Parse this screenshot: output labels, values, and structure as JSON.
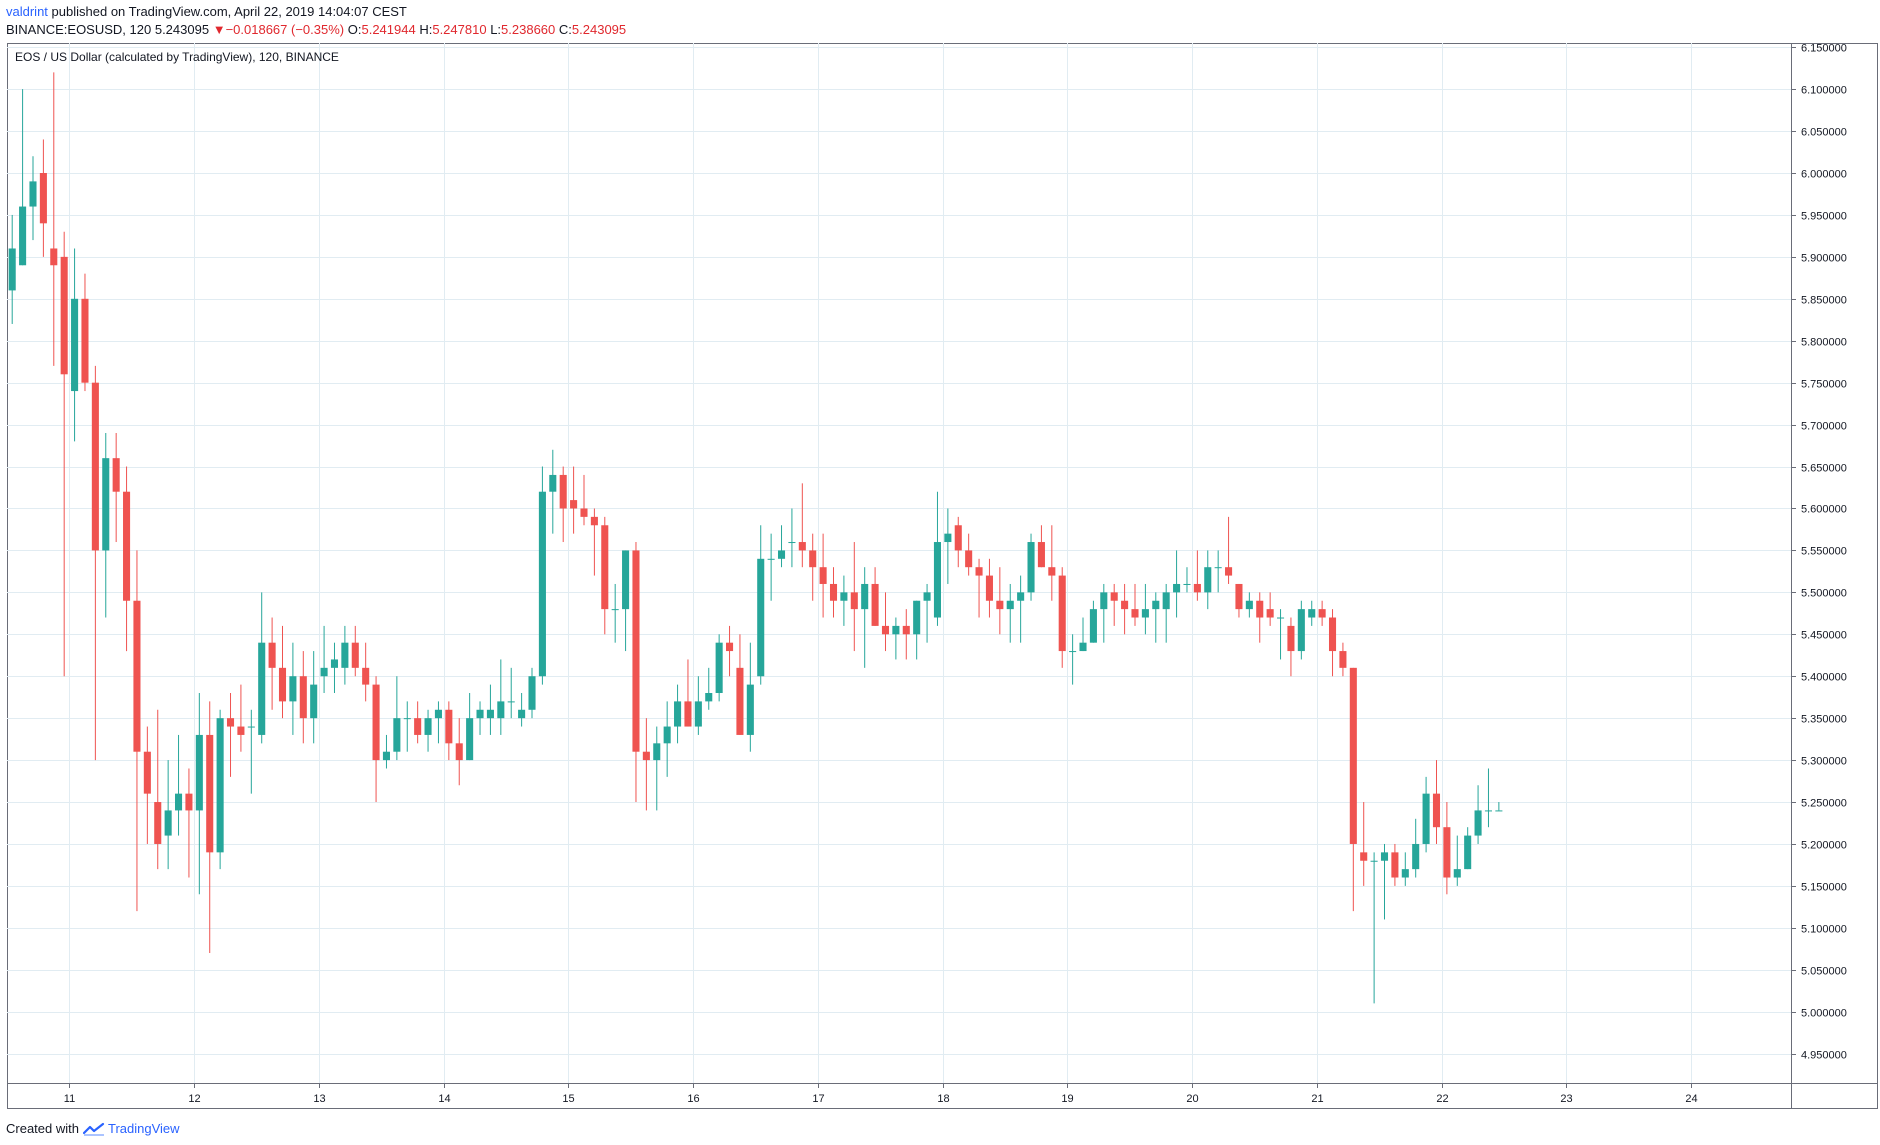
{
  "header": {
    "author": "valdrint",
    "published": "published on TradingView.com, April 22, 2019 14:04:07 CEST",
    "symbol_interval": "BINANCE:EOSUSD, 120",
    "last": "5.243095",
    "change_arrow": "▼",
    "change": "−0.018667 (−0.35%)",
    "o_label": "O:",
    "o": "5.241944",
    "h_label": "H:",
    "h": "5.247810",
    "l_label": "L:",
    "l": "5.238660",
    "c_label": "C:",
    "c": "5.243095"
  },
  "footer": {
    "created_with": "Created with",
    "brand": "TradingView",
    "logo_icon": "tradingview-logo-icon"
  },
  "colors": {
    "up": "#26a69a",
    "down": "#ef5350",
    "grid": "#e1ecf2",
    "axis": "#6a6d78",
    "text": "#131722"
  },
  "chart_data": {
    "type": "candlestick",
    "title": "EOS / US Dollar (calculated by TradingView), 120, BINANCE",
    "y_ticks": [
      "4.950000",
      "5.000000",
      "5.050000",
      "5.100000",
      "5.150000",
      "5.200000",
      "5.250000",
      "5.300000",
      "5.350000",
      "5.400000",
      "5.450000",
      "5.500000",
      "5.550000",
      "5.600000",
      "5.650000",
      "5.700000",
      "5.750000",
      "5.800000",
      "5.850000",
      "5.900000",
      "5.950000",
      "6.000000",
      "6.050000",
      "6.100000",
      "6.150000"
    ],
    "ylim": [
      4.915,
      6.155
    ],
    "x_ticks": [
      "11",
      "12",
      "13",
      "14",
      "15",
      "16",
      "17",
      "18",
      "19",
      "20",
      "21",
      "22",
      "23",
      "24"
    ],
    "x_tick_days": [
      11,
      12,
      13,
      14,
      15,
      16,
      17,
      18,
      19,
      20,
      21,
      22,
      23,
      24
    ],
    "xlim": [
      10.5,
      24.8
    ],
    "grid": true,
    "candle_times": "April 10, 2019 at 13:00, then one candle every 2 hours",
    "ohlc": [
      [
        5.86,
        5.95,
        5.82,
        5.91
      ],
      [
        5.89,
        6.1,
        5.89,
        5.96
      ],
      [
        5.96,
        6.02,
        5.92,
        5.99
      ],
      [
        6.0,
        6.04,
        5.9,
        5.94
      ],
      [
        5.91,
        6.12,
        5.77,
        5.89
      ],
      [
        5.9,
        5.93,
        5.4,
        5.76
      ],
      [
        5.74,
        5.91,
        5.68,
        5.85
      ],
      [
        5.85,
        5.88,
        5.74,
        5.75
      ],
      [
        5.75,
        5.77,
        5.3,
        5.55
      ],
      [
        5.55,
        5.69,
        5.47,
        5.66
      ],
      [
        5.66,
        5.69,
        5.56,
        5.62
      ],
      [
        5.62,
        5.65,
        5.43,
        5.49
      ],
      [
        5.49,
        5.55,
        5.12,
        5.31
      ],
      [
        5.31,
        5.34,
        5.2,
        5.26
      ],
      [
        5.25,
        5.36,
        5.17,
        5.2
      ],
      [
        5.21,
        5.3,
        5.17,
        5.24
      ],
      [
        5.24,
        5.33,
        5.21,
        5.26
      ],
      [
        5.26,
        5.29,
        5.16,
        5.24
      ],
      [
        5.24,
        5.38,
        5.14,
        5.33
      ],
      [
        5.33,
        5.37,
        5.07,
        5.19
      ],
      [
        5.19,
        5.36,
        5.17,
        5.35
      ],
      [
        5.35,
        5.38,
        5.28,
        5.34
      ],
      [
        5.34,
        5.39,
        5.31,
        5.33
      ],
      [
        5.34,
        5.36,
        5.26,
        5.34
      ],
      [
        5.33,
        5.5,
        5.32,
        5.44
      ],
      [
        5.44,
        5.47,
        5.36,
        5.41
      ],
      [
        5.41,
        5.46,
        5.35,
        5.37
      ],
      [
        5.37,
        5.44,
        5.33,
        5.4
      ],
      [
        5.4,
        5.43,
        5.32,
        5.35
      ],
      [
        5.35,
        5.43,
        5.32,
        5.39
      ],
      [
        5.4,
        5.46,
        5.38,
        5.41
      ],
      [
        5.41,
        5.44,
        5.38,
        5.42
      ],
      [
        5.41,
        5.46,
        5.39,
        5.44
      ],
      [
        5.44,
        5.46,
        5.4,
        5.41
      ],
      [
        5.41,
        5.44,
        5.37,
        5.39
      ],
      [
        5.39,
        5.4,
        5.25,
        5.3
      ],
      [
        5.3,
        5.33,
        5.29,
        5.31
      ],
      [
        5.31,
        5.4,
        5.3,
        5.35
      ],
      [
        5.35,
        5.37,
        5.31,
        5.35
      ],
      [
        5.35,
        5.37,
        5.32,
        5.33
      ],
      [
        5.33,
        5.36,
        5.31,
        5.35
      ],
      [
        5.35,
        5.37,
        5.32,
        5.36
      ],
      [
        5.36,
        5.37,
        5.3,
        5.32
      ],
      [
        5.32,
        5.35,
        5.27,
        5.3
      ],
      [
        5.3,
        5.38,
        5.3,
        5.35
      ],
      [
        5.35,
        5.37,
        5.33,
        5.36
      ],
      [
        5.35,
        5.39,
        5.33,
        5.36
      ],
      [
        5.35,
        5.42,
        5.33,
        5.37
      ],
      [
        5.37,
        5.41,
        5.35,
        5.37
      ],
      [
        5.35,
        5.38,
        5.34,
        5.36
      ],
      [
        5.36,
        5.41,
        5.35,
        5.4
      ],
      [
        5.4,
        5.65,
        5.39,
        5.62
      ],
      [
        5.62,
        5.67,
        5.57,
        5.64
      ],
      [
        5.64,
        5.65,
        5.56,
        5.6
      ],
      [
        5.61,
        5.65,
        5.57,
        5.6
      ],
      [
        5.6,
        5.64,
        5.58,
        5.59
      ],
      [
        5.59,
        5.6,
        5.52,
        5.58
      ],
      [
        5.58,
        5.59,
        5.45,
        5.48
      ],
      [
        5.48,
        5.51,
        5.44,
        5.48
      ],
      [
        5.48,
        5.55,
        5.43,
        5.55
      ],
      [
        5.55,
        5.56,
        5.25,
        5.31
      ],
      [
        5.31,
        5.35,
        5.24,
        5.3
      ],
      [
        5.3,
        5.34,
        5.24,
        5.32
      ],
      [
        5.32,
        5.37,
        5.28,
        5.34
      ],
      [
        5.34,
        5.39,
        5.32,
        5.37
      ],
      [
        5.37,
        5.42,
        5.34,
        5.34
      ],
      [
        5.34,
        5.4,
        5.33,
        5.37
      ],
      [
        5.37,
        5.41,
        5.36,
        5.38
      ],
      [
        5.38,
        5.45,
        5.37,
        5.44
      ],
      [
        5.44,
        5.46,
        5.4,
        5.43
      ],
      [
        5.41,
        5.45,
        5.33,
        5.33
      ],
      [
        5.33,
        5.44,
        5.31,
        5.39
      ],
      [
        5.4,
        5.58,
        5.39,
        5.54
      ],
      [
        5.54,
        5.57,
        5.49,
        5.54
      ],
      [
        5.54,
        5.58,
        5.53,
        5.55
      ],
      [
        5.56,
        5.6,
        5.53,
        5.56
      ],
      [
        5.56,
        5.63,
        5.53,
        5.55
      ],
      [
        5.55,
        5.57,
        5.49,
        5.53
      ],
      [
        5.53,
        5.57,
        5.47,
        5.51
      ],
      [
        5.51,
        5.53,
        5.47,
        5.49
      ],
      [
        5.49,
        5.52,
        5.46,
        5.5
      ],
      [
        5.5,
        5.56,
        5.43,
        5.48
      ],
      [
        5.48,
        5.53,
        5.41,
        5.51
      ],
      [
        5.51,
        5.53,
        5.46,
        5.46
      ],
      [
        5.46,
        5.5,
        5.43,
        5.45
      ],
      [
        5.45,
        5.47,
        5.42,
        5.46
      ],
      [
        5.46,
        5.48,
        5.42,
        5.45
      ],
      [
        5.45,
        5.49,
        5.42,
        5.49
      ],
      [
        5.49,
        5.51,
        5.44,
        5.5
      ],
      [
        5.47,
        5.62,
        5.46,
        5.56
      ],
      [
        5.56,
        5.6,
        5.51,
        5.57
      ],
      [
        5.58,
        5.59,
        5.53,
        5.55
      ],
      [
        5.55,
        5.57,
        5.52,
        5.53
      ],
      [
        5.53,
        5.54,
        5.47,
        5.52
      ],
      [
        5.52,
        5.54,
        5.47,
        5.49
      ],
      [
        5.49,
        5.53,
        5.45,
        5.48
      ],
      [
        5.48,
        5.51,
        5.44,
        5.49
      ],
      [
        5.49,
        5.52,
        5.44,
        5.5
      ],
      [
        5.5,
        5.57,
        5.49,
        5.56
      ],
      [
        5.56,
        5.58,
        5.53,
        5.53
      ],
      [
        5.53,
        5.58,
        5.49,
        5.52
      ],
      [
        5.52,
        5.53,
        5.41,
        5.43
      ],
      [
        5.43,
        5.45,
        5.39,
        5.43
      ],
      [
        5.43,
        5.47,
        5.43,
        5.44
      ],
      [
        5.44,
        5.49,
        5.44,
        5.48
      ],
      [
        5.48,
        5.51,
        5.44,
        5.5
      ],
      [
        5.5,
        5.51,
        5.46,
        5.49
      ],
      [
        5.49,
        5.51,
        5.45,
        5.48
      ],
      [
        5.48,
        5.51,
        5.46,
        5.47
      ],
      [
        5.47,
        5.51,
        5.45,
        5.48
      ],
      [
        5.48,
        5.5,
        5.44,
        5.49
      ],
      [
        5.48,
        5.51,
        5.44,
        5.5
      ],
      [
        5.5,
        5.55,
        5.47,
        5.51
      ],
      [
        5.51,
        5.53,
        5.5,
        5.51
      ],
      [
        5.51,
        5.55,
        5.49,
        5.5
      ],
      [
        5.5,
        5.55,
        5.48,
        5.53
      ],
      [
        5.53,
        5.55,
        5.5,
        5.53
      ],
      [
        5.53,
        5.59,
        5.51,
        5.52
      ],
      [
        5.51,
        5.51,
        5.47,
        5.48
      ],
      [
        5.48,
        5.5,
        5.47,
        5.49
      ],
      [
        5.49,
        5.5,
        5.44,
        5.47
      ],
      [
        5.48,
        5.5,
        5.46,
        5.47
      ],
      [
        5.47,
        5.48,
        5.42,
        5.47
      ],
      [
        5.46,
        5.47,
        5.4,
        5.43
      ],
      [
        5.43,
        5.49,
        5.42,
        5.48
      ],
      [
        5.47,
        5.49,
        5.46,
        5.48
      ],
      [
        5.48,
        5.49,
        5.46,
        5.47
      ],
      [
        5.47,
        5.48,
        5.4,
        5.43
      ],
      [
        5.43,
        5.44,
        5.4,
        5.41
      ],
      [
        5.41,
        5.41,
        5.12,
        5.2
      ],
      [
        5.19,
        5.25,
        5.15,
        5.18
      ],
      [
        5.18,
        5.19,
        5.01,
        5.18
      ],
      [
        5.18,
        5.2,
        5.11,
        5.19
      ],
      [
        5.19,
        5.2,
        5.15,
        5.16
      ],
      [
        5.16,
        5.19,
        5.15,
        5.17
      ],
      [
        5.17,
        5.23,
        5.16,
        5.2
      ],
      [
        5.2,
        5.28,
        5.19,
        5.26
      ],
      [
        5.26,
        5.3,
        5.2,
        5.22
      ],
      [
        5.22,
        5.25,
        5.14,
        5.16
      ],
      [
        5.16,
        5.21,
        5.15,
        5.17
      ],
      [
        5.17,
        5.22,
        5.17,
        5.21
      ],
      [
        5.21,
        5.27,
        5.2,
        5.24
      ],
      [
        5.24,
        5.29,
        5.22,
        5.24
      ],
      [
        5.24,
        5.25,
        5.24,
        5.24
      ]
    ]
  }
}
